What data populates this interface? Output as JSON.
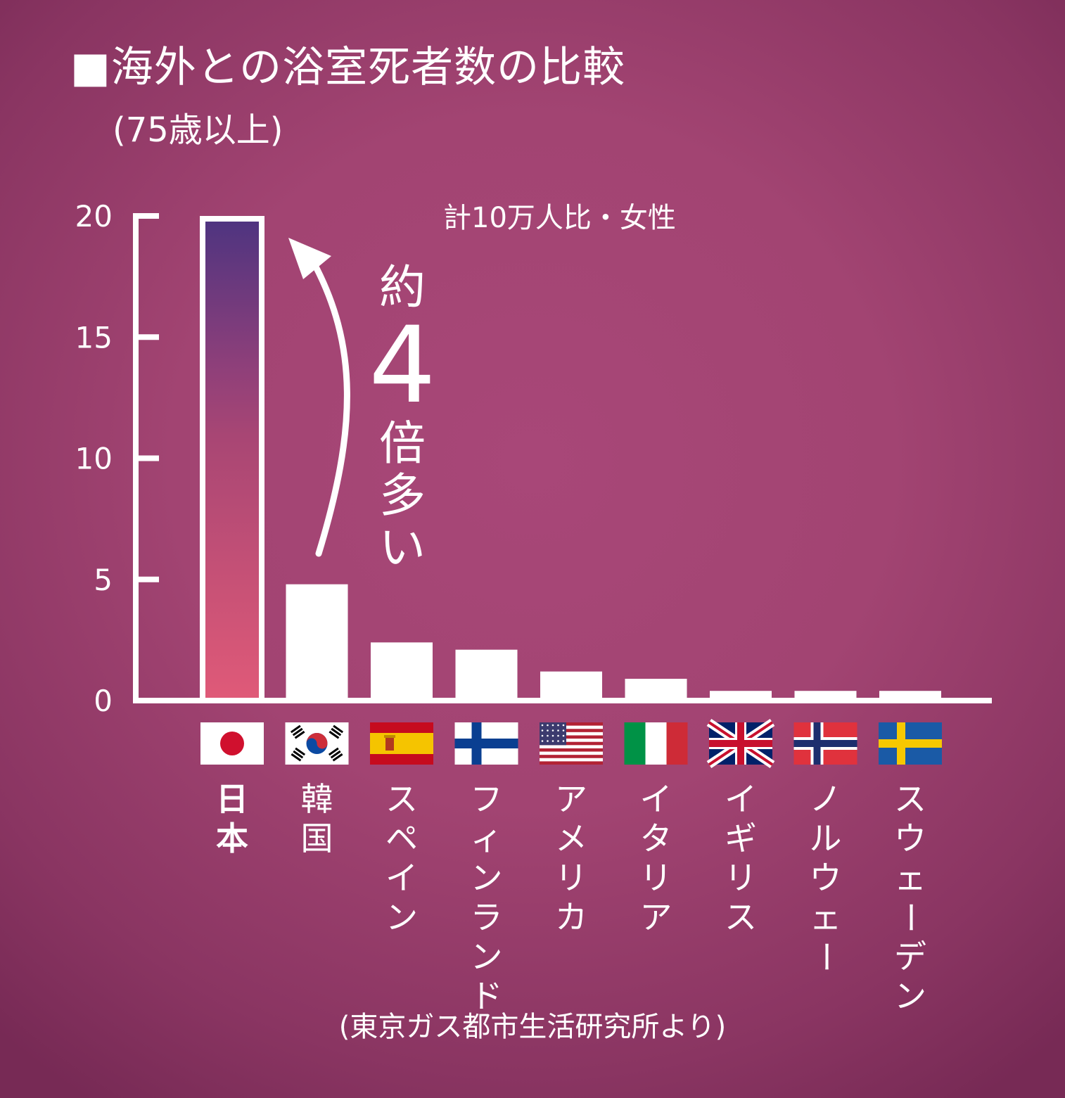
{
  "title": "■海外との浴室死者数の比較",
  "subtitle": "(75歳以上)",
  "unit_note": "計10万人比・女性",
  "source": "(東京ガス都市生活研究所より)",
  "annotation": {
    "lines": [
      "約",
      "4",
      "倍",
      "多",
      "い"
    ]
  },
  "colors": {
    "background": "#a24472",
    "japan_bar_top": "#4e3480",
    "japan_bar_bottom": "#e05a78",
    "other_bars": "#ffffff"
  },
  "chart_data": {
    "type": "bar",
    "title": "■海外との浴室死者数の比較",
    "subtitle": "(75歳以上)",
    "ylabel": "計10万人比・女性",
    "ylim": [
      0,
      20
    ],
    "yticks": [
      "0",
      "5",
      "10",
      "15",
      "20"
    ],
    "grid": false,
    "categories": [
      "日本",
      "韓国",
      "スペイン",
      "フィンランド",
      "アメリカ",
      "イタリア",
      "イギリス",
      "ノルウェー",
      "スウェーデン"
    ],
    "values": [
      20,
      4.8,
      2.4,
      2.1,
      1.2,
      0.9,
      0.4,
      0.4,
      0.4
    ],
    "flags": [
      "japan-flag",
      "korea-flag",
      "spain-flag",
      "finland-flag",
      "usa-flag",
      "italy-flag",
      "uk-flag",
      "norway-flag",
      "sweden-flag"
    ]
  }
}
